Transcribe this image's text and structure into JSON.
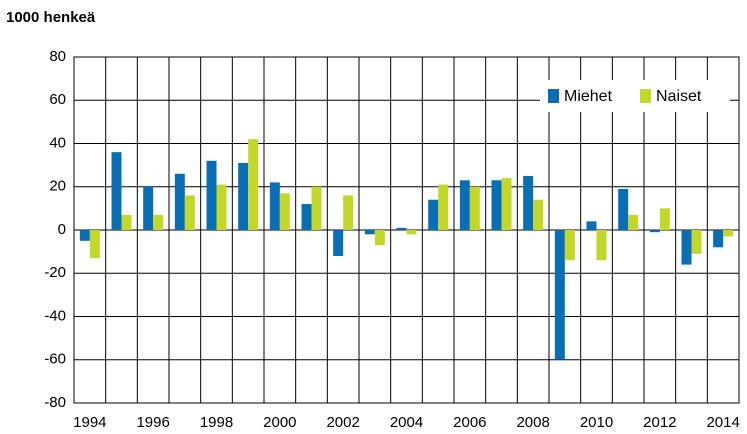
{
  "chart_data": {
    "type": "bar",
    "y_label": "1000 henkeä",
    "categories": [
      "1994",
      null,
      "1996",
      null,
      "1998",
      null,
      "2000",
      null,
      "2002",
      null,
      "2004",
      null,
      "2006",
      null,
      "2008",
      null,
      "2010",
      null,
      "2012",
      null,
      "2014"
    ],
    "series": [
      {
        "name": "Miehet",
        "color": "#0a6eb4",
        "values": [
          -5,
          36,
          20,
          26,
          32,
          31,
          22,
          12,
          -12,
          -2,
          1,
          14,
          23,
          23,
          25,
          -60,
          4,
          19,
          -1,
          -16,
          -8
        ]
      },
      {
        "name": "Naiset",
        "color": "#c3d72a",
        "values": [
          -13,
          7,
          7,
          16,
          21,
          42,
          17,
          20,
          16,
          -7,
          -2,
          21,
          20,
          24,
          14,
          -14,
          -14,
          7,
          10,
          -11,
          -3
        ]
      }
    ],
    "ylim": [
      -80,
      80
    ],
    "yticks": [
      -80,
      -60,
      -40,
      -20,
      0,
      20,
      40,
      60,
      80
    ],
    "grid": true,
    "legend": "top-right"
  }
}
